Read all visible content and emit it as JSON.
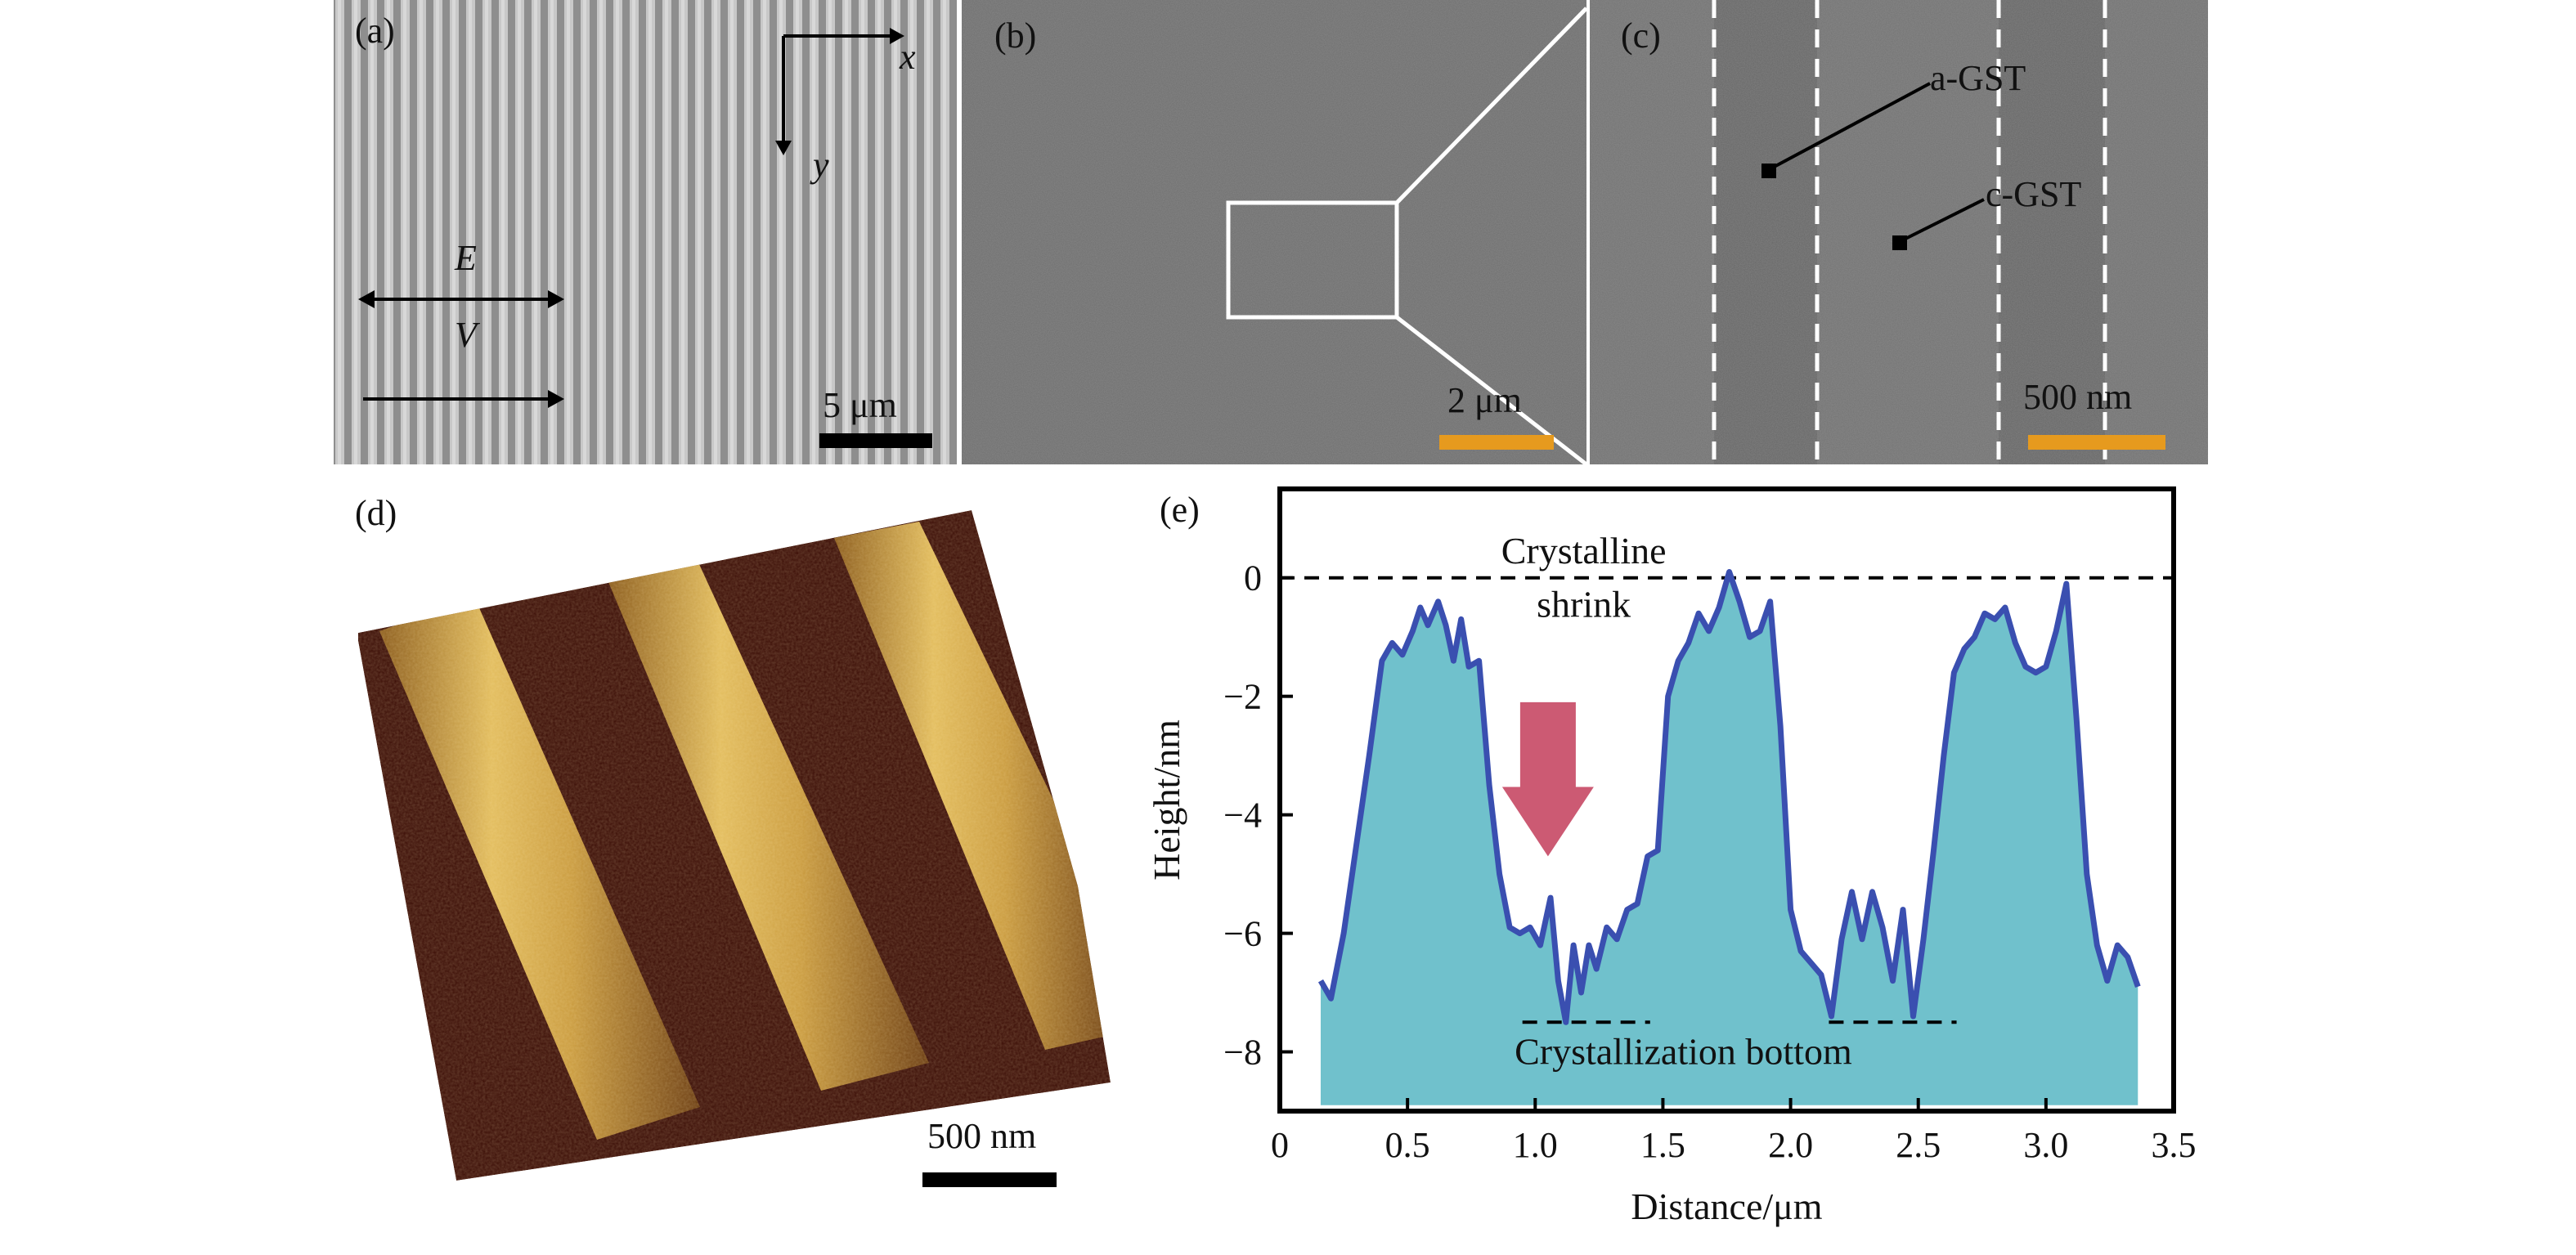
{
  "panels": {
    "a": {
      "label": "(a)",
      "axis_x": "x",
      "axis_y": "y",
      "e_label": "E",
      "v_label": "V",
      "scale_bar": "5 μm",
      "colors": {
        "stripe_light": "#c4c4c4",
        "stripe_dark": "#8c8c8c",
        "bar": "#000000"
      }
    },
    "b": {
      "label": "(b)",
      "scale_bar": "2 μm",
      "colors": {
        "bg": "#6e6e6e",
        "bar": "#e69a1e"
      }
    },
    "c": {
      "label": "(c)",
      "annotations": [
        "a-GST",
        "c-GST"
      ],
      "scale_bar": "500 nm",
      "colors": {
        "bg": "#707070",
        "amorphous_band": "#666666",
        "bar": "#e69a1e"
      }
    },
    "d": {
      "label": "(d)",
      "scale_bar": "500 nm",
      "colors": {
        "dark": "#3a0c05",
        "ridge": "#c99a3d",
        "highlight": "#f2d27a"
      }
    },
    "e": {
      "label": "(e)"
    }
  },
  "chart_data": {
    "type": "area",
    "xlabel": "Distance/μm",
    "ylabel": "Height/nm",
    "xlim": [
      0,
      3.5
    ],
    "ylim": [
      -9,
      1.5
    ],
    "xticks": [
      "0",
      "0.5",
      "1.0",
      "1.5",
      "2.0",
      "2.5",
      "3.0",
      "3.5"
    ],
    "xtick_values": [
      0,
      0.5,
      1.0,
      1.5,
      2.0,
      2.5,
      3.0,
      3.5
    ],
    "yticks": [
      "0",
      "−2",
      "−4",
      "−6",
      "−8"
    ],
    "ytick_values": [
      0,
      -2,
      -4,
      -6,
      -8
    ],
    "grid": false,
    "fill_baseline": -8.9,
    "series": [
      {
        "x": [
          0.16,
          0.2,
          0.25,
          0.3,
          0.35,
          0.4,
          0.44,
          0.48,
          0.52,
          0.55,
          0.58,
          0.62,
          0.65,
          0.68,
          0.71,
          0.74,
          0.78,
          0.82,
          0.86,
          0.9,
          0.94,
          0.98,
          1.02,
          1.06,
          1.09,
          1.12,
          1.15,
          1.18,
          1.21,
          1.24,
          1.28,
          1.32,
          1.36,
          1.4,
          1.44,
          1.48,
          1.52,
          1.56,
          1.6,
          1.64,
          1.68,
          1.72,
          1.76,
          1.8,
          1.84,
          1.88,
          1.92,
          1.96,
          2.0,
          2.04,
          2.08,
          2.12,
          2.16,
          2.2,
          2.24,
          2.28,
          2.32,
          2.36,
          2.4,
          2.44,
          2.48,
          2.52,
          2.56,
          2.6,
          2.64,
          2.68,
          2.72,
          2.76,
          2.8,
          2.84,
          2.88,
          2.92,
          2.96,
          3.0,
          3.04,
          3.08,
          3.12,
          3.16,
          3.2,
          3.24,
          3.28,
          3.32,
          3.36
        ],
        "y": [
          -6.8,
          -7.1,
          -6.0,
          -4.5,
          -3.0,
          -1.4,
          -1.1,
          -1.3,
          -0.9,
          -0.5,
          -0.8,
          -0.4,
          -0.8,
          -1.4,
          -0.7,
          -1.5,
          -1.4,
          -3.5,
          -5.0,
          -5.9,
          -6.0,
          -5.9,
          -6.2,
          -5.4,
          -6.8,
          -7.5,
          -6.2,
          -7.0,
          -6.2,
          -6.6,
          -5.9,
          -6.1,
          -5.6,
          -5.5,
          -4.7,
          -4.6,
          -2.0,
          -1.4,
          -1.1,
          -0.6,
          -0.9,
          -0.5,
          0.1,
          -0.4,
          -1.0,
          -0.9,
          -0.4,
          -2.5,
          -5.6,
          -6.3,
          -6.5,
          -6.7,
          -7.4,
          -6.1,
          -5.3,
          -6.1,
          -5.3,
          -5.9,
          -6.8,
          -5.6,
          -7.4,
          -6.1,
          -4.6,
          -3.0,
          -1.6,
          -1.2,
          -1.0,
          -0.6,
          -0.7,
          -0.5,
          -1.1,
          -1.5,
          -1.6,
          -1.5,
          -0.9,
          -0.1,
          -2.4,
          -5.0,
          -6.2,
          -6.8,
          -6.2,
          -6.4,
          -6.9
        ]
      }
    ],
    "reference_lines": [
      {
        "y": 0,
        "from": 0,
        "to": 3.5
      },
      {
        "y": -7.5,
        "from": 0.95,
        "to": 1.45
      },
      {
        "y": -7.5,
        "from": 2.15,
        "to": 2.65
      }
    ],
    "annotations": [
      {
        "text": "Crystalline",
        "x": 1.19,
        "y": 0.45
      },
      {
        "text": "shrink",
        "x": 1.19,
        "y": -0.45
      },
      {
        "text": "Crystallization bottom",
        "x": 1.58,
        "y": -8.0
      }
    ],
    "arrow": {
      "x": 1.05,
      "y_top": -2.1,
      "y_bottom": -4.7
    },
    "colors": {
      "fill": "#70c1cc",
      "line": "#3a4fb0",
      "arrow": "#cc5a73",
      "frame": "#000000"
    }
  }
}
